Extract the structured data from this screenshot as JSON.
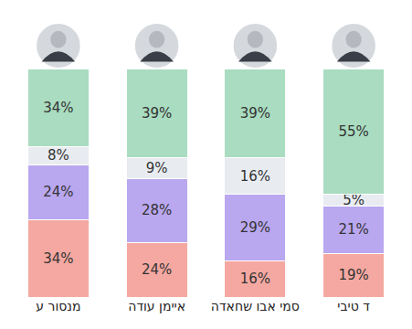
{
  "chart_data": {
    "type": "bar",
    "stacked": true,
    "data_labels": true,
    "tick_labels": "x",
    "grid": false,
    "categories": [
      "מנסור ע",
      "איימן עודה",
      "סמי אבו שחאדה",
      "ד טיבי"
    ],
    "ylim": [
      0,
      100
    ],
    "series": [
      {
        "color": "#f5a8a1",
        "values": [
          34,
          24,
          16,
          19
        ],
        "value_labels": [
          "34%",
          "24%",
          "16%",
          "19%"
        ]
      },
      {
        "color": "#b9a7ef",
        "values": [
          24,
          28,
          29,
          21
        ],
        "value_labels": [
          "24%",
          "28%",
          "29%",
          "21%"
        ]
      },
      {
        "color": "#e8ecf1",
        "values": [
          8,
          9,
          16,
          5
        ],
        "value_labels": [
          "8%",
          "9%",
          "16%",
          "5%"
        ]
      },
      {
        "color": "#a9dcc0",
        "values": [
          34,
          39,
          39,
          55
        ],
        "value_labels": [
          "34%",
          "39%",
          "39%",
          "55%"
        ]
      }
    ]
  }
}
